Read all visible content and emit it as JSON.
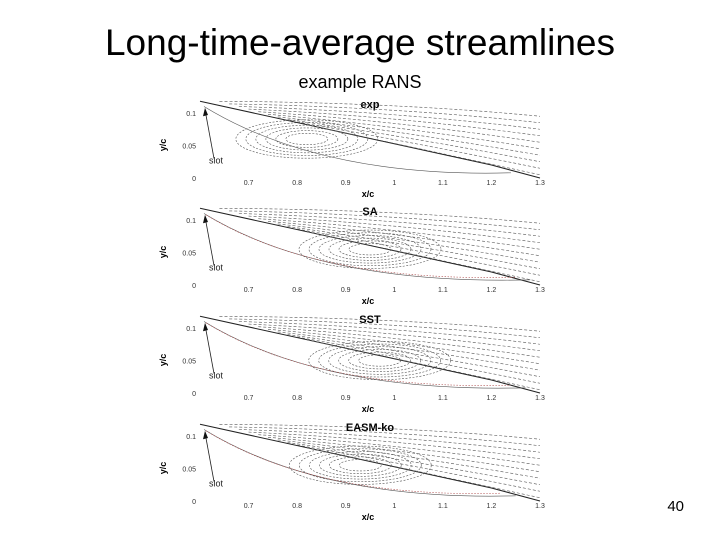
{
  "slide": {
    "title": "Long-time-average streamlines",
    "subtitle": "example RANS",
    "page_number": "40"
  },
  "chart_data": [
    {
      "type": "streamline",
      "title": "exp",
      "xlabel": "x/c",
      "ylabel": "y/c",
      "annotation": "slot",
      "xlim": [
        0.6,
        1.3
      ],
      "ylim": [
        0,
        0.12
      ],
      "xticks": [
        "0.7",
        "0.8",
        "0.9",
        "1",
        "1.1",
        "1.2",
        "1.3"
      ],
      "yticks": [
        "0",
        "0.05",
        "0.1"
      ],
      "separation_bubble": {
        "center_x": 0.82,
        "center_y": 0.06,
        "reattachment_x": 1.24
      }
    },
    {
      "type": "streamline",
      "title": "SA",
      "xlabel": "x/c",
      "ylabel": "y/c",
      "annotation": "slot",
      "xlim": [
        0.6,
        1.3
      ],
      "ylim": [
        0,
        0.12
      ],
      "xticks": [
        "0.7",
        "0.8",
        "0.9",
        "1",
        "1.1",
        "1.2",
        "1.3"
      ],
      "yticks": [
        "0",
        "0.05",
        "0.1"
      ],
      "separation_bubble": {
        "center_x": 0.95,
        "center_y": 0.055,
        "reattachment_x": 1.28
      }
    },
    {
      "type": "streamline",
      "title": "SST",
      "xlabel": "x/c",
      "ylabel": "y/c",
      "annotation": "slot",
      "xlim": [
        0.6,
        1.3
      ],
      "ylim": [
        0,
        0.12
      ],
      "xticks": [
        "0.7",
        "0.8",
        "0.9",
        "1",
        "1.1",
        "1.2",
        "1.3"
      ],
      "yticks": [
        "0",
        "0.05",
        "0.1"
      ],
      "separation_bubble": {
        "center_x": 0.97,
        "center_y": 0.05,
        "reattachment_x": 1.27
      }
    },
    {
      "type": "streamline",
      "title": "EASM-ko",
      "xlabel": "x/c",
      "ylabel": "y/c",
      "annotation": "slot",
      "xlim": [
        0.6,
        1.3
      ],
      "ylim": [
        0,
        0.12
      ],
      "xticks": [
        "0.7",
        "0.8",
        "0.9",
        "1",
        "1.1",
        "1.2",
        "1.3"
      ],
      "yticks": [
        "0",
        "0.05",
        "0.1"
      ],
      "separation_bubble": {
        "center_x": 0.93,
        "center_y": 0.055,
        "reattachment_x": 1.25
      }
    }
  ]
}
